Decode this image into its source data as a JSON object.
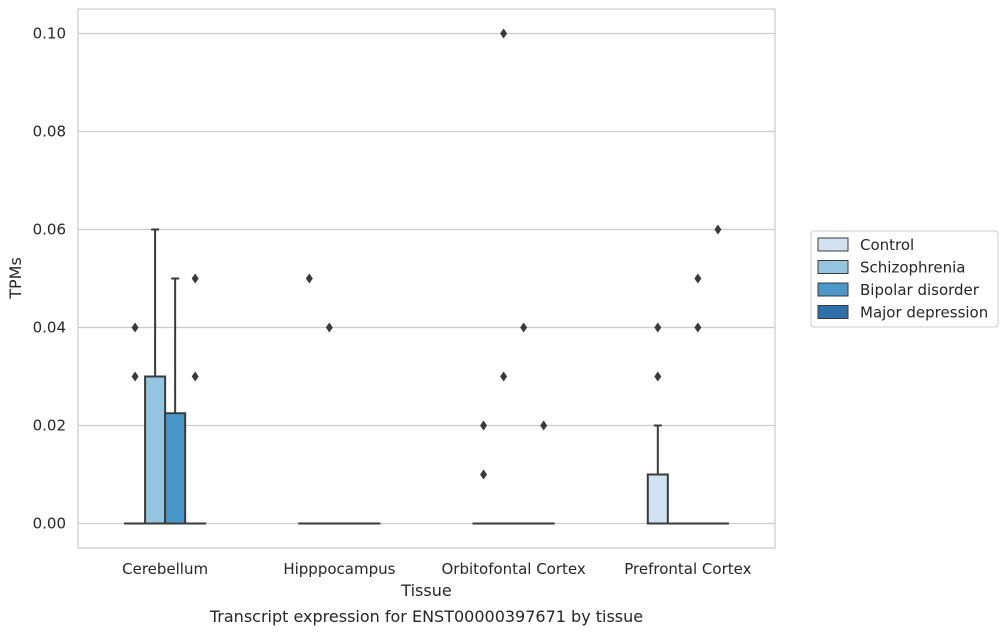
{
  "chart_data": {
    "type": "box",
    "title": "",
    "caption": "Transcript expression for ENST00000397671 by tissue",
    "xlabel": "Tissue",
    "ylabel": "TPMs",
    "ylim": [
      -0.005,
      0.105
    ],
    "yticks": [
      0.0,
      0.02,
      0.04,
      0.06,
      0.08,
      0.1
    ],
    "ytick_labels": [
      "0.00",
      "0.02",
      "0.04",
      "0.06",
      "0.08",
      "0.10"
    ],
    "grid": true,
    "legend_position": "right",
    "categories": [
      "Cerebellum",
      "Hipppocampus",
      "Orbitofontal Cortex",
      "Prefrontal Cortex"
    ],
    "series": [
      {
        "name": "Control",
        "color": "#d0e1f2",
        "boxes": [
          {
            "q1": 0,
            "median": 0,
            "q3": 0,
            "whisker_low": 0,
            "whisker_high": 0,
            "outliers": [
              0.03,
              0.04
            ]
          },
          {
            "q1": 0,
            "median": 0,
            "q3": 0,
            "whisker_low": 0,
            "whisker_high": 0,
            "outliers": [
              0.05
            ]
          },
          {
            "q1": 0,
            "median": 0,
            "q3": 0,
            "whisker_low": 0,
            "whisker_high": 0,
            "outliers": [
              0.01,
              0.02
            ]
          },
          {
            "q1": 0,
            "median": 0,
            "q3": 0.01,
            "whisker_low": 0,
            "whisker_high": 0.02,
            "outliers": [
              0.03,
              0.04
            ]
          }
        ]
      },
      {
        "name": "Schizophrenia",
        "color": "#94c4df",
        "boxes": [
          {
            "q1": 0,
            "median": 0,
            "q3": 0.03,
            "whisker_low": 0,
            "whisker_high": 0.06,
            "outliers": []
          },
          {
            "q1": 0,
            "median": 0,
            "q3": 0,
            "whisker_low": 0,
            "whisker_high": 0,
            "outliers": [
              0.04
            ]
          },
          {
            "q1": 0,
            "median": 0,
            "q3": 0,
            "whisker_low": 0,
            "whisker_high": 0,
            "outliers": [
              0.1,
              0.03
            ]
          },
          {
            "q1": 0,
            "median": 0,
            "q3": 0,
            "whisker_low": 0,
            "whisker_high": 0,
            "outliers": []
          }
        ]
      },
      {
        "name": "Bipolar disorder",
        "color": "#4a98c9",
        "boxes": [
          {
            "q1": 0,
            "median": 0,
            "q3": 0.0225,
            "whisker_low": 0,
            "whisker_high": 0.05,
            "outliers": []
          },
          {
            "q1": 0,
            "median": 0,
            "q3": 0,
            "whisker_low": 0,
            "whisker_high": 0,
            "outliers": []
          },
          {
            "q1": 0,
            "median": 0,
            "q3": 0,
            "whisker_low": 0,
            "whisker_high": 0,
            "outliers": [
              0.04
            ]
          },
          {
            "q1": 0,
            "median": 0,
            "q3": 0,
            "whisker_low": 0,
            "whisker_high": 0,
            "outliers": [
              0.04,
              0.05
            ]
          }
        ]
      },
      {
        "name": "Major depression",
        "color": "#2e6fac",
        "boxes": [
          {
            "q1": 0,
            "median": 0,
            "q3": 0,
            "whisker_low": 0,
            "whisker_high": 0,
            "outliers": [
              0.03,
              0.05
            ]
          },
          {
            "q1": 0,
            "median": 0,
            "q3": 0,
            "whisker_low": 0,
            "whisker_high": 0,
            "outliers": []
          },
          {
            "q1": 0,
            "median": 0,
            "q3": 0,
            "whisker_low": 0,
            "whisker_high": 0,
            "outliers": [
              0.02
            ]
          },
          {
            "q1": 0,
            "median": 0,
            "q3": 0,
            "whisker_low": 0,
            "whisker_high": 0,
            "outliers": [
              0.06
            ]
          }
        ]
      }
    ]
  }
}
